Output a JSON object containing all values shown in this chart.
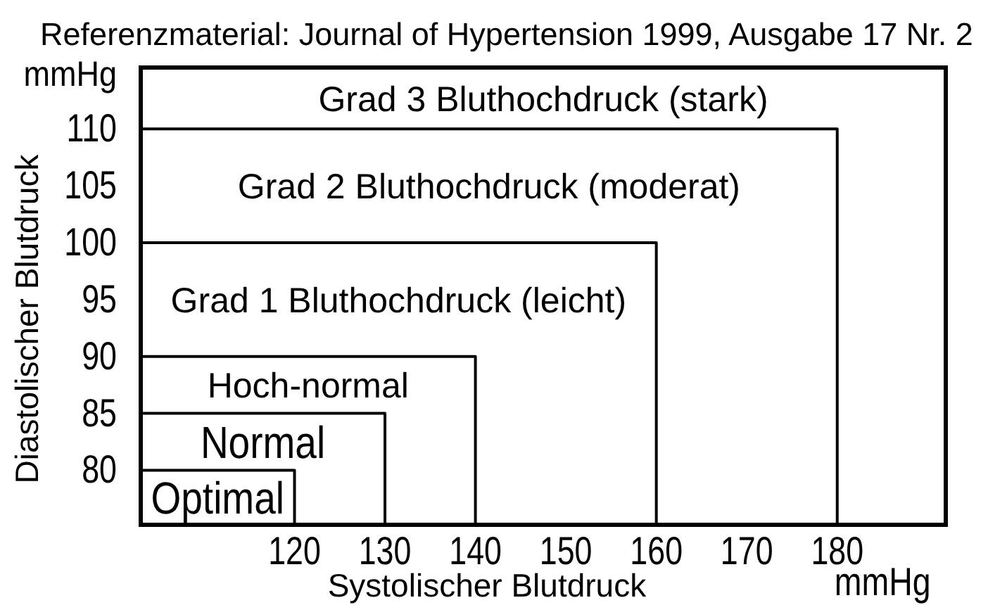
{
  "chart_data": {
    "type": "line",
    "title": "Referenzmaterial: Journal of Hypertension 1999, Ausgabe 17 Nr. 2",
    "xlabel": "Systolischer Blutdruck",
    "ylabel": "Diastolischer Blutdruck",
    "annotations": [
      "Grad 3 Bluthochdruck (stark)",
      "mmHg",
      "mmHg"
    ],
    "xlim": [
      103,
      192
    ],
    "ylim": [
      75.2,
      115.4
    ],
    "xticks": [
      120,
      130,
      140,
      150,
      160,
      170,
      180
    ],
    "yticks": [
      80,
      85,
      90,
      95,
      100,
      105,
      110
    ],
    "series": [
      {
        "name": "Grad 2 Bluthochdruck (moderat)",
        "color": "#000000",
        "x": [
          103,
          180,
          180
        ],
        "values": [
          110,
          110,
          75.2
        ]
      },
      {
        "name": "Grad 1 Bluthochdruck (leicht)",
        "color": "#000000",
        "x": [
          103,
          160,
          160
        ],
        "values": [
          100,
          100,
          75.2
        ]
      },
      {
        "name": "Hoch-normal",
        "color": "#000000",
        "x": [
          103,
          140,
          140
        ],
        "values": [
          90,
          90,
          75.2
        ]
      },
      {
        "name": "Normal",
        "color": "#000000",
        "x": [
          103,
          130,
          130
        ],
        "values": [
          85,
          85,
          75.2
        ]
      },
      {
        "name": "Optimal",
        "color": "#000000",
        "x": [
          103,
          120,
          120
        ],
        "values": [
          80,
          80,
          75.2
        ]
      }
    ],
    "line_style": "solid"
  }
}
